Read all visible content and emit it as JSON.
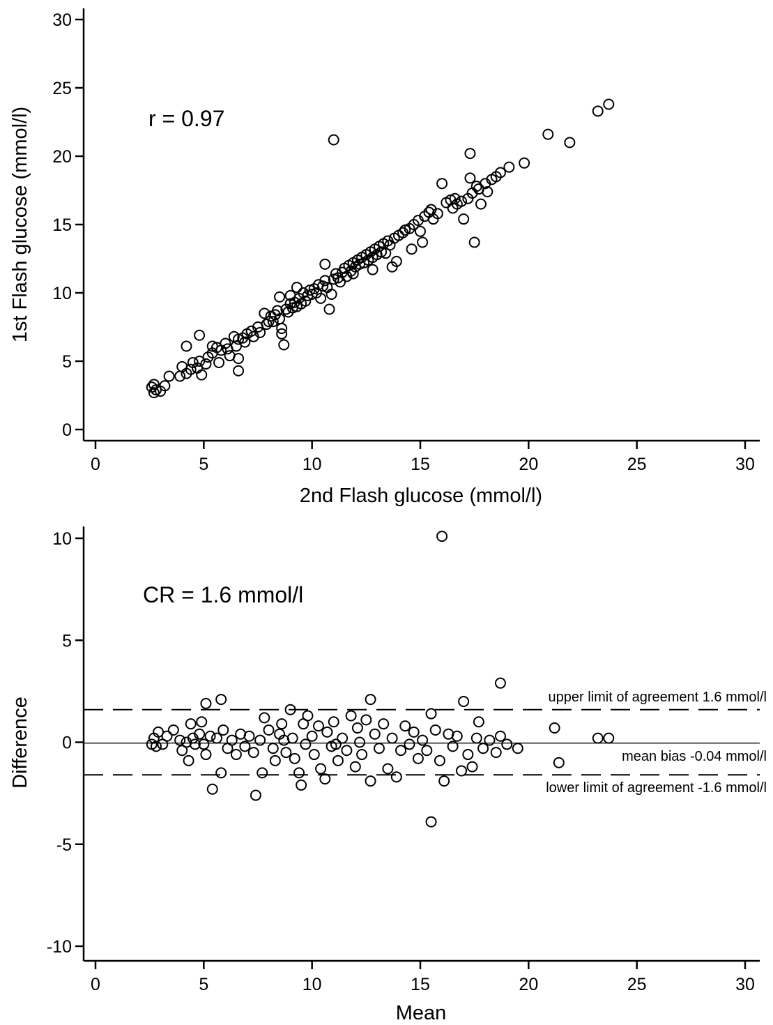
{
  "chart_data": [
    {
      "type": "scatter",
      "xlabel": "2nd Flash glucose (mmol/l)",
      "ylabel": "1st Flash glucose (mmol/l)",
      "xlim": [
        0,
        30
      ],
      "ylim": [
        0,
        30
      ],
      "xticks": [
        "0",
        "5",
        "10",
        "15",
        "20",
        "25",
        "30"
      ],
      "yticks": [
        "0",
        "5",
        "10",
        "15",
        "20",
        "25",
        "30"
      ],
      "annotation": "r = 0.97",
      "marker": "open-circle",
      "grid": false,
      "points": [
        [
          2.7,
          2.7
        ],
        [
          2.8,
          2.9
        ],
        [
          2.6,
          3.1
        ],
        [
          3.0,
          2.8
        ],
        [
          3.2,
          3.2
        ],
        [
          2.7,
          3.3
        ],
        [
          3.4,
          3.9
        ],
        [
          3.9,
          3.9
        ],
        [
          4.0,
          4.6
        ],
        [
          4.2,
          4.1
        ],
        [
          4.2,
          6.1
        ],
        [
          4.4,
          4.4
        ],
        [
          4.5,
          4.9
        ],
        [
          4.7,
          4.5
        ],
        [
          4.8,
          5.0
        ],
        [
          4.8,
          6.9
        ],
        [
          4.9,
          4.0
        ],
        [
          5.1,
          4.8
        ],
        [
          5.2,
          5.3
        ],
        [
          5.4,
          5.6
        ],
        [
          5.4,
          6.1
        ],
        [
          5.6,
          6.0
        ],
        [
          5.7,
          4.9
        ],
        [
          5.8,
          5.8
        ],
        [
          6.0,
          6.3
        ],
        [
          6.1,
          5.9
        ],
        [
          6.2,
          5.4
        ],
        [
          6.4,
          6.8
        ],
        [
          6.5,
          6.1
        ],
        [
          6.6,
          6.6
        ],
        [
          6.6,
          4.3
        ],
        [
          6.6,
          5.2
        ],
        [
          6.8,
          6.7
        ],
        [
          6.9,
          6.4
        ],
        [
          7.0,
          7.0
        ],
        [
          7.2,
          7.2
        ],
        [
          7.3,
          6.8
        ],
        [
          7.5,
          7.5
        ],
        [
          7.6,
          7.1
        ],
        [
          7.8,
          8.5
        ],
        [
          7.9,
          7.7
        ],
        [
          8.0,
          7.9
        ],
        [
          8.1,
          8.3
        ],
        [
          8.2,
          7.9
        ],
        [
          8.3,
          8.4
        ],
        [
          8.4,
          8.7
        ],
        [
          8.5,
          8.1
        ],
        [
          8.5,
          9.7
        ],
        [
          8.6,
          7.4
        ],
        [
          8.6,
          7.0
        ],
        [
          8.7,
          6.2
        ],
        [
          8.8,
          8.8
        ],
        [
          8.9,
          8.6
        ],
        [
          9.0,
          9.2
        ],
        [
          9.0,
          9.8
        ],
        [
          9.1,
          8.9
        ],
        [
          9.2,
          9.3
        ],
        [
          9.3,
          9.0
        ],
        [
          9.4,
          9.6
        ],
        [
          9.5,
          9.2
        ],
        [
          9.6,
          10.0
        ],
        [
          9.7,
          9.4
        ],
        [
          9.8,
          9.8
        ],
        [
          9.9,
          10.2
        ],
        [
          10.0,
          9.9
        ],
        [
          10.1,
          10.3
        ],
        [
          10.2,
          10.0
        ],
        [
          10.3,
          10.6
        ],
        [
          10.4,
          9.6
        ],
        [
          10.5,
          10.5
        ],
        [
          10.6,
          10.9
        ],
        [
          10.7,
          10.4
        ],
        [
          10.8,
          8.8
        ],
        [
          10.9,
          9.9
        ],
        [
          11.0,
          21.2
        ],
        [
          11.0,
          11.0
        ],
        [
          11.1,
          11.4
        ],
        [
          11.2,
          11.1
        ],
        [
          11.3,
          10.8
        ],
        [
          11.4,
          11.5
        ],
        [
          11.5,
          11.8
        ],
        [
          11.6,
          11.2
        ],
        [
          11.7,
          12.0
        ],
        [
          11.8,
          11.6
        ],
        [
          11.9,
          12.2
        ],
        [
          12.0,
          11.9
        ],
        [
          12.1,
          12.4
        ],
        [
          12.2,
          12.1
        ],
        [
          12.3,
          12.6
        ],
        [
          12.4,
          12.2
        ],
        [
          12.5,
          12.8
        ],
        [
          12.6,
          12.4
        ],
        [
          12.7,
          13.0
        ],
        [
          12.8,
          12.6
        ],
        [
          12.9,
          13.2
        ],
        [
          13.0,
          12.8
        ],
        [
          13.1,
          13.4
        ],
        [
          13.2,
          13.0
        ],
        [
          13.3,
          13.6
        ],
        [
          13.4,
          12.9
        ],
        [
          13.5,
          13.8
        ],
        [
          13.6,
          13.5
        ],
        [
          13.7,
          11.9
        ],
        [
          13.8,
          14.0
        ],
        [
          13.9,
          12.3
        ],
        [
          14.0,
          14.2
        ],
        [
          14.2,
          14.4
        ],
        [
          14.3,
          14.6
        ],
        [
          14.5,
          14.7
        ],
        [
          14.6,
          13.2
        ],
        [
          14.7,
          15.0
        ],
        [
          14.9,
          15.3
        ],
        [
          15.0,
          14.5
        ],
        [
          15.1,
          13.7
        ],
        [
          15.2,
          15.6
        ],
        [
          15.4,
          15.9
        ],
        [
          15.5,
          16.1
        ],
        [
          15.6,
          15.4
        ],
        [
          15.8,
          15.8
        ],
        [
          16.0,
          18.0
        ],
        [
          16.2,
          16.6
        ],
        [
          16.4,
          16.8
        ],
        [
          16.5,
          16.2
        ],
        [
          16.6,
          16.9
        ],
        [
          16.7,
          16.5
        ],
        [
          16.9,
          16.7
        ],
        [
          17.0,
          15.4
        ],
        [
          17.2,
          16.9
        ],
        [
          17.3,
          20.2
        ],
        [
          17.3,
          18.4
        ],
        [
          17.4,
          17.3
        ],
        [
          17.5,
          13.7
        ],
        [
          17.6,
          17.8
        ],
        [
          17.7,
          17.6
        ],
        [
          17.8,
          16.5
        ],
        [
          18.0,
          18.0
        ],
        [
          18.1,
          17.4
        ],
        [
          18.3,
          18.3
        ],
        [
          18.5,
          18.5
        ],
        [
          18.7,
          18.8
        ],
        [
          19.1,
          19.2
        ],
        [
          19.8,
          19.5
        ],
        [
          20.9,
          21.6
        ],
        [
          21.9,
          21.0
        ],
        [
          23.2,
          23.3
        ],
        [
          23.7,
          23.8
        ],
        [
          10.6,
          12.1
        ],
        [
          11.9,
          11.4
        ],
        [
          12.8,
          11.7
        ],
        [
          9.3,
          10.4
        ]
      ]
    },
    {
      "type": "scatter",
      "xlabel": "Mean",
      "ylabel": "Difference",
      "xlim": [
        0,
        30
      ],
      "ylim": [
        -10,
        10
      ],
      "xticks": [
        "0",
        "5",
        "10",
        "15",
        "20",
        "25",
        "30"
      ],
      "yticks": [
        "-10",
        "-5",
        "0",
        "5",
        "10"
      ],
      "annotation": "CR = 1.6 mmol/l",
      "marker": "open-circle",
      "grid": false,
      "reference_lines": [
        {
          "y": 1.6,
          "style": "dashed",
          "label": "upper limit of agreement 1.6 mmol/l"
        },
        {
          "y": -0.04,
          "style": "solid",
          "label": "mean bias -0.04 mmol/l"
        },
        {
          "y": -1.6,
          "style": "dashed",
          "label": "lower limit of agreement -1.6 mmol/l"
        }
      ],
      "points": [
        [
          2.6,
          -0.1
        ],
        [
          2.7,
          0.2
        ],
        [
          2.8,
          -0.2
        ],
        [
          2.9,
          0.5
        ],
        [
          3.1,
          -0.1
        ],
        [
          3.3,
          0.3
        ],
        [
          3.6,
          0.6
        ],
        [
          3.9,
          0.1
        ],
        [
          4.0,
          -0.4
        ],
        [
          4.2,
          0.0
        ],
        [
          4.3,
          -0.9
        ],
        [
          4.4,
          0.9
        ],
        [
          4.5,
          0.2
        ],
        [
          4.6,
          -0.1
        ],
        [
          4.8,
          0.4
        ],
        [
          4.9,
          1.0
        ],
        [
          5.0,
          -0.1
        ],
        [
          5.1,
          -0.6
        ],
        [
          5.1,
          1.9
        ],
        [
          5.3,
          0.3
        ],
        [
          5.4,
          -2.3
        ],
        [
          5.6,
          0.2
        ],
        [
          5.8,
          2.1
        ],
        [
          5.8,
          -1.5
        ],
        [
          5.9,
          0.6
        ],
        [
          6.1,
          -0.3
        ],
        [
          6.3,
          0.1
        ],
        [
          6.5,
          -0.6
        ],
        [
          6.7,
          0.4
        ],
        [
          6.9,
          -0.2
        ],
        [
          7.1,
          0.3
        ],
        [
          7.3,
          -0.5
        ],
        [
          7.4,
          -2.6
        ],
        [
          7.6,
          0.1
        ],
        [
          7.7,
          -1.5
        ],
        [
          7.8,
          1.2
        ],
        [
          8.0,
          0.6
        ],
        [
          8.2,
          -0.3
        ],
        [
          8.3,
          -0.9
        ],
        [
          8.5,
          0.4
        ],
        [
          8.6,
          0.9
        ],
        [
          8.8,
          -0.5
        ],
        [
          9.0,
          1.6
        ],
        [
          9.1,
          0.2
        ],
        [
          9.2,
          -0.8
        ],
        [
          9.4,
          -1.5
        ],
        [
          9.5,
          -2.1
        ],
        [
          9.6,
          0.9
        ],
        [
          9.7,
          -0.1
        ],
        [
          9.8,
          1.3
        ],
        [
          10.0,
          0.3
        ],
        [
          10.1,
          -0.6
        ],
        [
          10.3,
          0.8
        ],
        [
          10.4,
          -1.3
        ],
        [
          10.6,
          -1.8
        ],
        [
          10.7,
          0.5
        ],
        [
          10.9,
          -0.2
        ],
        [
          11.0,
          1.0
        ],
        [
          11.2,
          -0.9
        ],
        [
          11.4,
          0.2
        ],
        [
          11.6,
          -0.4
        ],
        [
          11.8,
          1.3
        ],
        [
          12.0,
          -1.2
        ],
        [
          12.1,
          0.7
        ],
        [
          12.3,
          -0.6
        ],
        [
          12.5,
          1.1
        ],
        [
          12.7,
          2.1
        ],
        [
          12.7,
          -1.9
        ],
        [
          12.9,
          0.4
        ],
        [
          13.1,
          -0.3
        ],
        [
          13.3,
          0.9
        ],
        [
          13.5,
          -1.3
        ],
        [
          13.7,
          0.2
        ],
        [
          13.9,
          -1.7
        ],
        [
          14.1,
          -0.4
        ],
        [
          14.3,
          0.8
        ],
        [
          14.5,
          -0.1
        ],
        [
          14.7,
          0.5
        ],
        [
          14.9,
          -0.8
        ],
        [
          15.1,
          0.1
        ],
        [
          15.3,
          -0.4
        ],
        [
          15.5,
          1.4
        ],
        [
          15.5,
          -3.9
        ],
        [
          15.7,
          0.6
        ],
        [
          15.9,
          -0.9
        ],
        [
          16.0,
          10.1
        ],
        [
          16.1,
          -1.9
        ],
        [
          16.3,
          0.4
        ],
        [
          16.5,
          -0.2
        ],
        [
          16.7,
          0.3
        ],
        [
          16.9,
          -1.4
        ],
        [
          17.0,
          2.0
        ],
        [
          17.2,
          -0.6
        ],
        [
          17.4,
          -1.2
        ],
        [
          17.6,
          0.2
        ],
        [
          17.7,
          1.0
        ],
        [
          17.9,
          -0.3
        ],
        [
          18.2,
          0.1
        ],
        [
          18.5,
          -0.5
        ],
        [
          18.7,
          2.9
        ],
        [
          18.7,
          0.3
        ],
        [
          19.0,
          -0.1
        ],
        [
          19.5,
          -0.3
        ],
        [
          21.2,
          0.7
        ],
        [
          21.4,
          -1.0
        ],
        [
          23.2,
          0.2
        ],
        [
          23.7,
          0.2
        ],
        [
          8.7,
          0.1
        ],
        [
          11.1,
          -0.1
        ],
        [
          12.2,
          0.0
        ]
      ]
    }
  ]
}
